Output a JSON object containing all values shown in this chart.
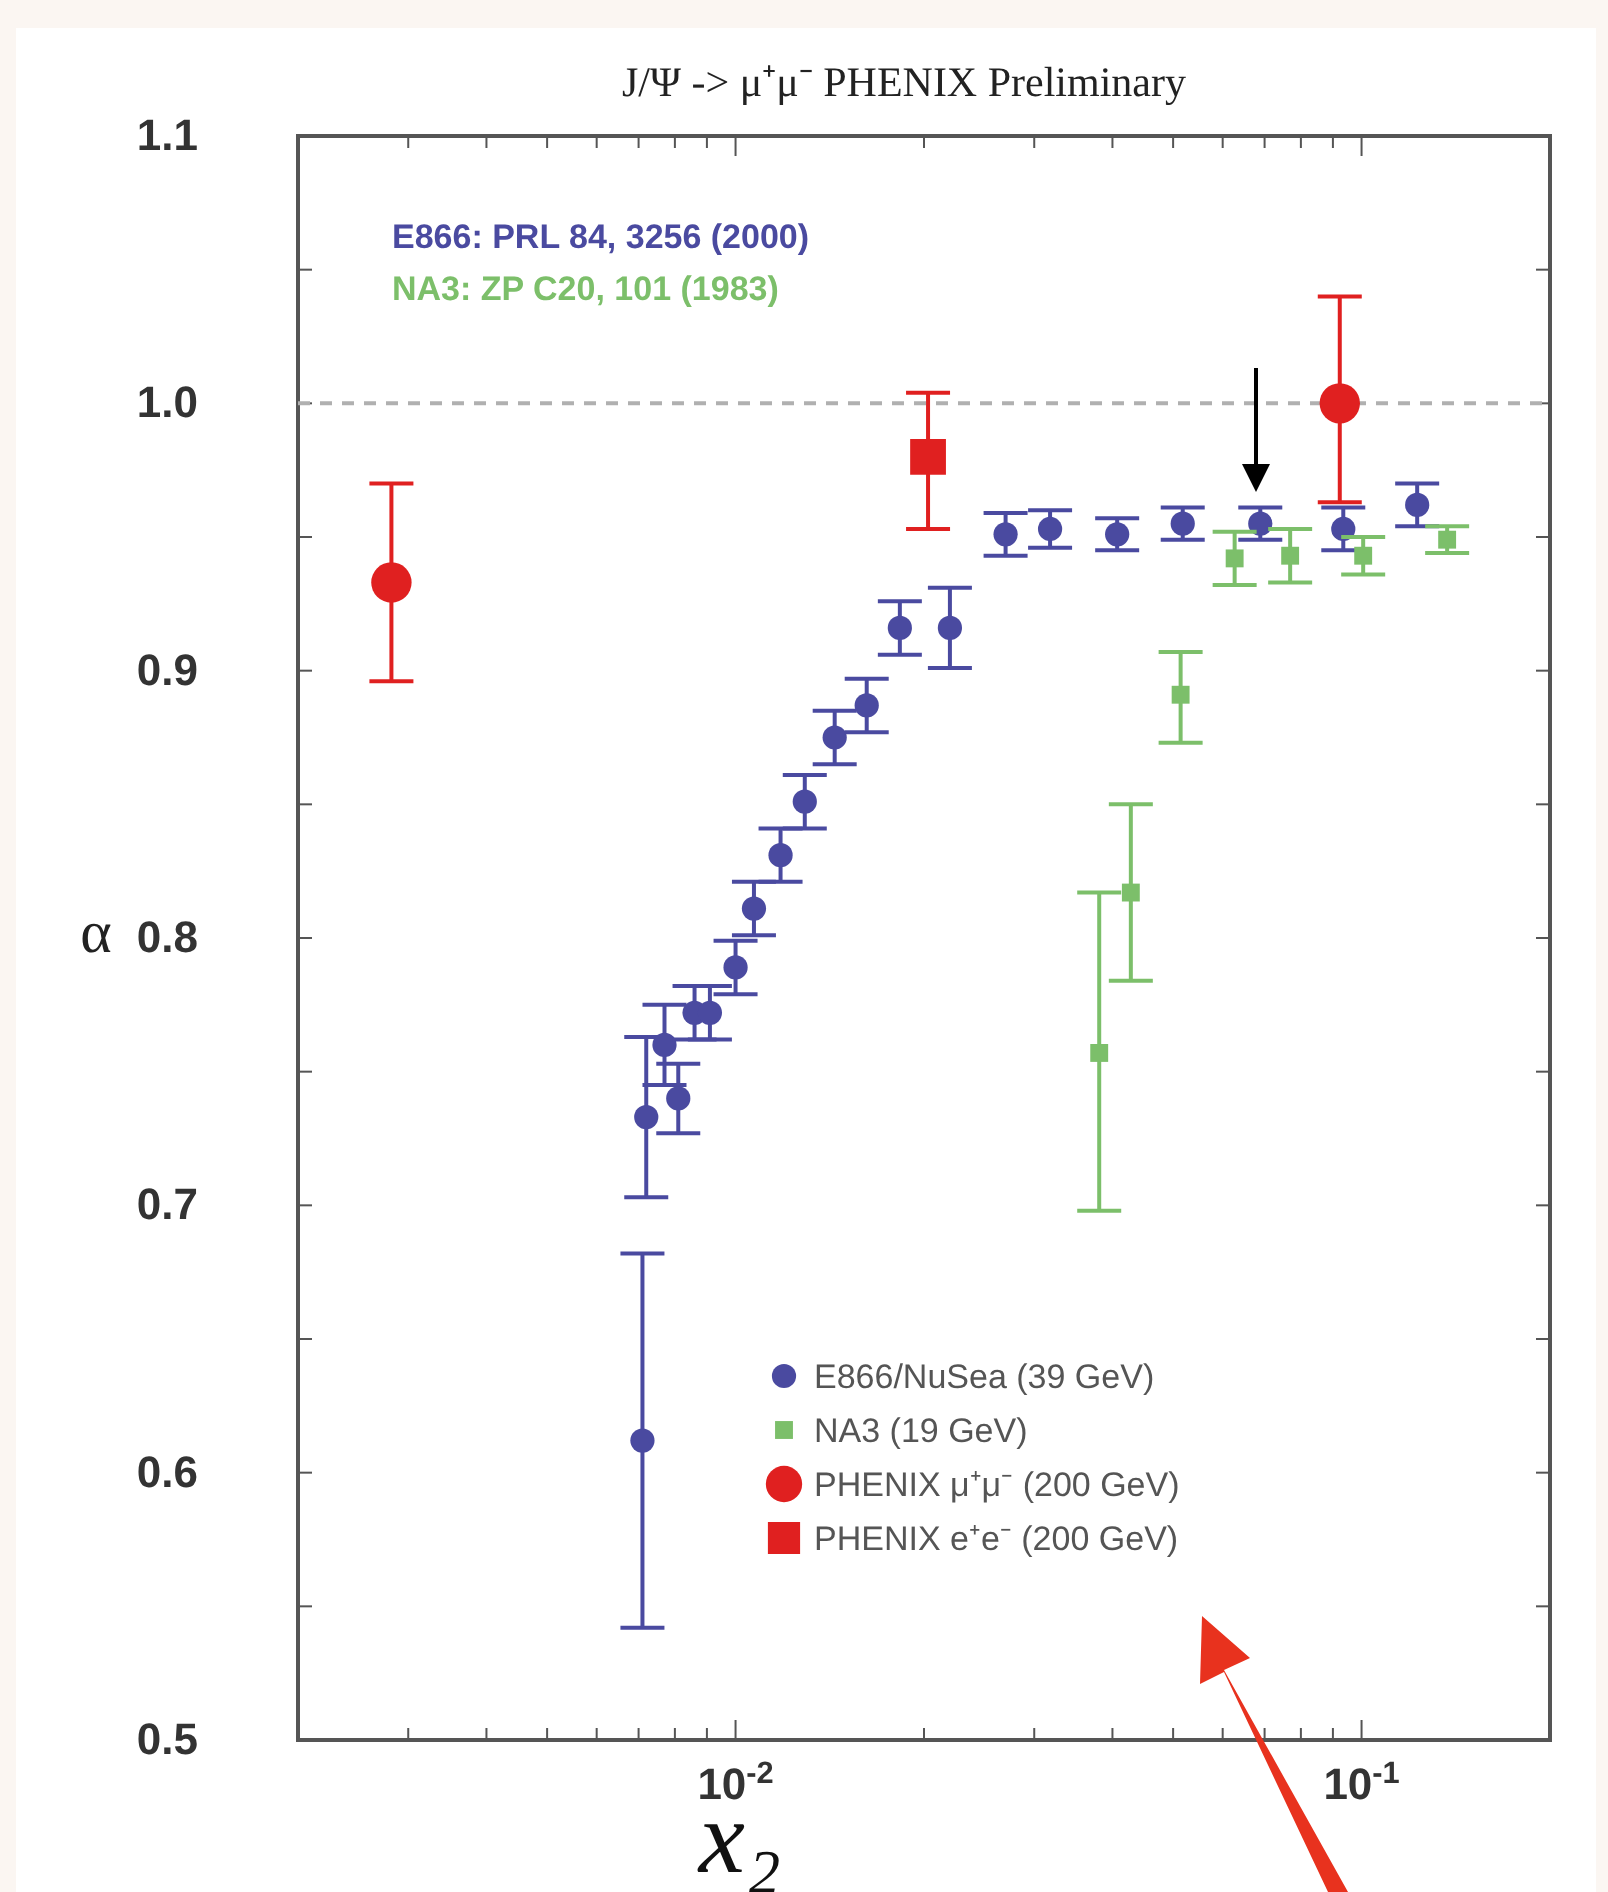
{
  "chart_data": {
    "type": "scatter",
    "title": "J/Ψ -> μ⁺μ⁻  PHENIX Preliminary",
    "xlabel": "x₂",
    "ylabel": "α",
    "annotations": [
      "E866: PRL 84, 3256 (2000)",
      "NA3: ZP C20, 101 (1983)"
    ],
    "log": "x",
    "xlim": [
      0.002,
      0.2
    ],
    "ylim": [
      0.5,
      1.1
    ],
    "xticks": [
      {
        "value": 0.003,
        "label": null
      },
      {
        "value": 0.004,
        "label": null
      },
      {
        "value": 0.005,
        "label": null
      },
      {
        "value": 0.006,
        "label": null
      },
      {
        "value": 0.007,
        "label": null
      },
      {
        "value": 0.008,
        "label": null
      },
      {
        "value": 0.009,
        "label": null
      },
      {
        "value": 0.01,
        "label": "10$^{-2}$"
      },
      {
        "value": 0.02,
        "label": null
      },
      {
        "value": 0.03,
        "label": null
      },
      {
        "value": 0.04,
        "label": null
      },
      {
        "value": 0.05,
        "label": null
      },
      {
        "value": 0.06,
        "label": null
      },
      {
        "value": 0.07,
        "label": null
      },
      {
        "value": 0.08,
        "label": null
      },
      {
        "value": 0.09,
        "label": null
      },
      {
        "value": 0.1,
        "label": "10$^{-1}$"
      }
    ],
    "yticks": [
      0.5,
      {
        "value": 0.55,
        "label": null
      },
      0.6,
      {
        "value": 0.65,
        "label": null
      },
      0.7,
      {
        "value": 0.75,
        "label": null
      },
      0.8,
      {
        "value": 0.85,
        "label": null
      },
      0.9,
      {
        "value": 0.95,
        "label": null
      },
      {
        "value": 1,
        "label": "1.0"
      },
      {
        "value": 1.05,
        "label": null
      },
      1.1
    ],
    "ref_lines": [
      {
        "axis": "y",
        "value": 1,
        "label": null,
        "color": "#b0b0b0",
        "line_style": "dashed"
      }
    ],
    "legend": "bottom right",
    "series": [
      {
        "name": "E866/NuSea (39 GeV)",
        "color": "#4a4aa0",
        "marker": "circle",
        "x": [
          0.0071,
          0.0072,
          0.0077,
          0.0081,
          0.0086,
          0.0091,
          0.01,
          0.0107,
          0.0118,
          0.0129,
          0.0144,
          0.0162,
          0.0183,
          0.022,
          0.027,
          0.0318,
          0.0407,
          0.0518,
          0.0689,
          0.0935,
          0.1227
        ],
        "values": [
          0.612,
          0.733,
          0.76,
          0.74,
          0.772,
          0.772,
          0.789,
          0.811,
          0.831,
          0.851,
          0.875,
          0.887,
          0.916,
          0.916,
          0.951,
          0.953,
          0.951,
          0.955,
          0.955,
          0.953,
          0.962
        ],
        "errors": [
          0.07,
          0.03,
          0.015,
          0.013,
          0.01,
          0.01,
          0.01,
          0.01,
          0.01,
          0.01,
          0.01,
          0.01,
          0.01,
          0.015,
          0.008,
          0.007,
          0.006,
          0.006,
          0.006,
          0.008,
          0.008
        ]
      },
      {
        "name": "NA3 (19 GeV)",
        "color": "#7cbf6a",
        "marker": "square",
        "x": [
          0.0381,
          0.0428,
          0.0514,
          0.0627,
          0.0769,
          0.1006,
          0.137
        ],
        "values": [
          0.757,
          0.817,
          0.891,
          0.942,
          0.943,
          0.943,
          0.949
        ],
        "errors": [
          [
            0.698,
            0.817
          ],
          [
            0.784,
            0.85
          ],
          [
            0.873,
            0.907
          ],
          0.01,
          0.01,
          0.007,
          0.005
        ]
      },
      {
        "name": "PHENIX μ⁺μ⁻ (200 GeV)",
        "color": "#e02020",
        "marker": "circle",
        "x": [
          0.00282,
          0.0923
        ],
        "values": [
          0.933,
          1.0
        ],
        "errors": [
          [
            0.896,
            0.97
          ],
          [
            0.963,
            1.04
          ]
        ]
      },
      {
        "name": "PHENIX e⁺e⁻ (200 GeV)",
        "color": "#e02020",
        "marker": "square",
        "x": [
          0.0203
        ],
        "values": [
          0.98
        ],
        "errors": [
          [
            0.953,
            1.004
          ]
        ]
      }
    ]
  }
}
